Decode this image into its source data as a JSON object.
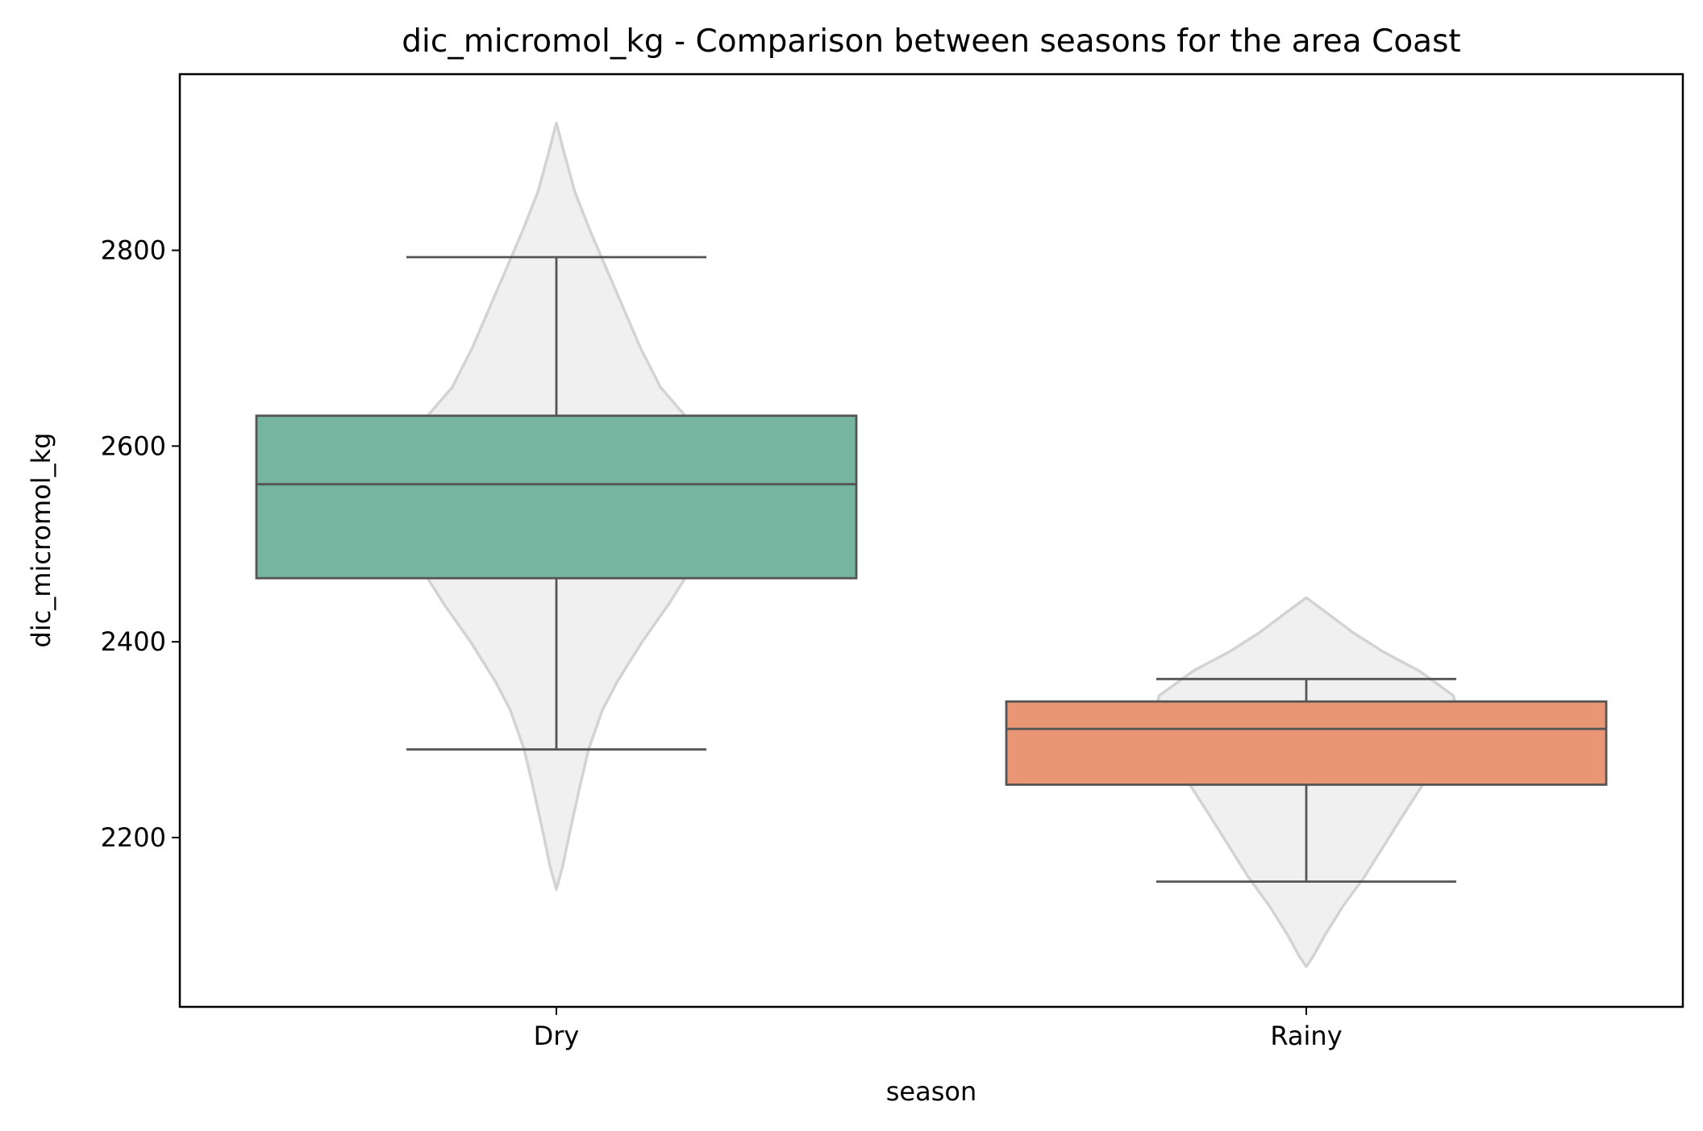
{
  "chart_data": {
    "type": "box",
    "title": "dic_micromol_kg - Comparison between seasons for the area Coast",
    "xlabel": "season",
    "ylabel": "dic_micromol_kg",
    "categories": [
      "Dry",
      "Rainy"
    ],
    "ylim": [
      2027,
      2980
    ],
    "yticks": [
      2200,
      2400,
      2600,
      2800
    ],
    "ytick_labels": [
      "2200",
      "2400",
      "2600",
      "2800"
    ],
    "grid": false,
    "legend": "none",
    "series": [
      {
        "category": "Dry",
        "color": "#76b5a0",
        "box": {
          "whisker_low": 2290,
          "q1": 2465,
          "median": 2561,
          "q3": 2631,
          "whisker_high": 2793
        },
        "violin": {
          "min": 2147,
          "max": 2930,
          "profile": [
            [
              2147,
              0.0
            ],
            [
              2170,
              0.04
            ],
            [
              2200,
              0.08
            ],
            [
              2250,
              0.15
            ],
            [
              2290,
              0.21
            ],
            [
              2330,
              0.3
            ],
            [
              2360,
              0.4
            ],
            [
              2400,
              0.56
            ],
            [
              2440,
              0.74
            ],
            [
              2480,
              0.9
            ],
            [
              2520,
              0.98
            ],
            [
              2560,
              1.0
            ],
            [
              2600,
              0.95
            ],
            [
              2631,
              0.84
            ],
            [
              2660,
              0.68
            ],
            [
              2700,
              0.55
            ],
            [
              2740,
              0.44
            ],
            [
              2780,
              0.33
            ],
            [
              2820,
              0.22
            ],
            [
              2860,
              0.12
            ],
            [
              2900,
              0.05
            ],
            [
              2930,
              0.0
            ]
          ]
        }
      },
      {
        "category": "Rainy",
        "color": "#e99675",
        "box": {
          "whisker_low": 2155,
          "q1": 2254,
          "median": 2311,
          "q3": 2339,
          "whisker_high": 2362
        },
        "violin": {
          "min": 2068,
          "max": 2445,
          "profile": [
            [
              2068,
              0.0
            ],
            [
              2080,
              0.05
            ],
            [
              2100,
              0.12
            ],
            [
              2130,
              0.24
            ],
            [
              2160,
              0.38
            ],
            [
              2190,
              0.5
            ],
            [
              2220,
              0.62
            ],
            [
              2254,
              0.76
            ],
            [
              2290,
              0.92
            ],
            [
              2320,
              1.0
            ],
            [
              2345,
              0.96
            ],
            [
              2370,
              0.74
            ],
            [
              2390,
              0.5
            ],
            [
              2410,
              0.3
            ],
            [
              2430,
              0.13
            ],
            [
              2445,
              0.0
            ]
          ]
        }
      }
    ]
  }
}
